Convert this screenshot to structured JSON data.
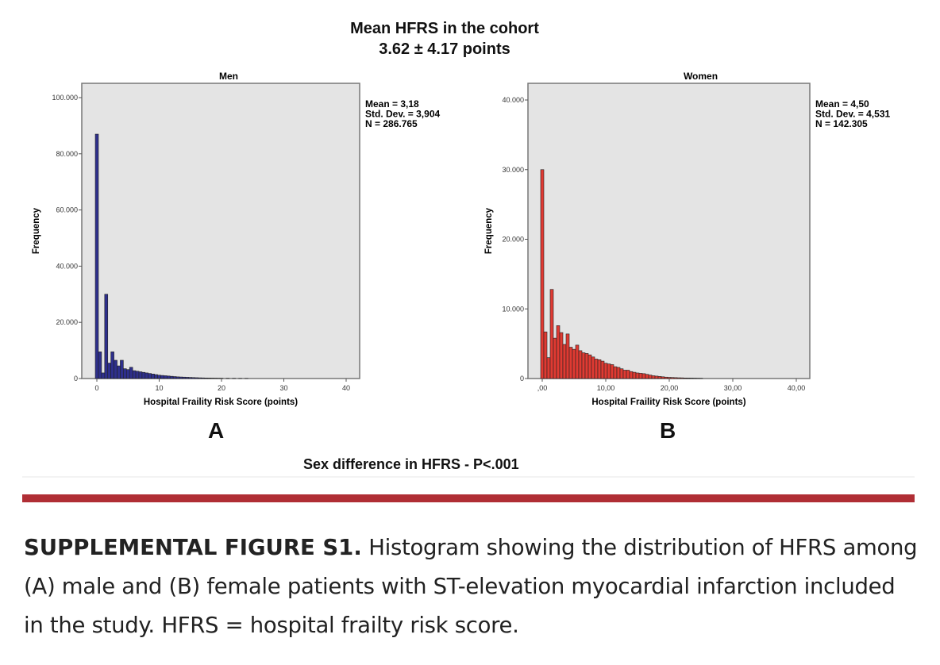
{
  "figure": {
    "title_line1": "Mean HFRS in the cohort",
    "title_line2": "3.62 ± 4.17 points",
    "footer": "Sex difference in HFRS - P<.001",
    "label_a": "A",
    "label_b": "B"
  },
  "caption": {
    "label": "SUPPLEMENTAL FIGURE S1.",
    "text": " Histogram showing the distribution of HFRS among (A) male and (B) female patients with ST-elevation myocardial infarction included in the study. HFRS = hospital frailty risk score."
  },
  "colors": {
    "men_bar": "#2e2f8c",
    "women_bar": "#e03a32",
    "plot_bg": "#e4e4e4",
    "accent_rule": "#b02e35"
  },
  "chart_data": [
    {
      "type": "bar",
      "title": "Men",
      "xlabel": "Hospital Fraility Risk Score (points)",
      "ylabel": "Frequency",
      "xlim": [
        -2,
        42
      ],
      "ylim": [
        0,
        105000
      ],
      "xticks": [
        0,
        10,
        20,
        30,
        40
      ],
      "xtick_labels": [
        "0",
        "10",
        "20",
        "30",
        "40"
      ],
      "yticks": [
        0,
        20000,
        40000,
        60000,
        80000,
        100000
      ],
      "ytick_labels": [
        "0",
        "20.000",
        "40.000",
        "60.000",
        "80.000",
        "100.000"
      ],
      "bin_width": 0.5,
      "bin_start": [
        0,
        0.5,
        1,
        1.5,
        2,
        2.5,
        3,
        3.5,
        4,
        4.5,
        5,
        5.5,
        6,
        6.5,
        7,
        7.5,
        8,
        8.5,
        9,
        9.5,
        10,
        10.5,
        11,
        11.5,
        12,
        12.5,
        13,
        13.5,
        14,
        14.5,
        15,
        15.5,
        16,
        16.5,
        17,
        17.5,
        18,
        18.5,
        19,
        19.5,
        20,
        21,
        22,
        23,
        24
      ],
      "values": [
        87000,
        9500,
        2000,
        30000,
        5500,
        9500,
        6500,
        4500,
        6500,
        3500,
        3200,
        4000,
        2800,
        2600,
        2400,
        2200,
        2000,
        1800,
        1600,
        1400,
        1200,
        1100,
        1000,
        900,
        800,
        700,
        600,
        550,
        500,
        450,
        400,
        350,
        300,
        260,
        230,
        200,
        170,
        150,
        130,
        110,
        90,
        70,
        50,
        30,
        20
      ],
      "legend_stats": [
        "Mean = 3,18",
        "Std. Dev. = 3,904",
        "N = 286.765"
      ],
      "grid": false
    },
    {
      "type": "bar",
      "title": "Women",
      "xlabel": "Hospital Fraility Risk Score (points)",
      "ylabel": "Frequency",
      "xlim": [
        -2,
        42
      ],
      "ylim": [
        0,
        42000
      ],
      "xticks": [
        0,
        10,
        20,
        30,
        40
      ],
      "xtick_labels": [
        ",00",
        "10,00",
        "20,00",
        "30,00",
        "40,00"
      ],
      "yticks": [
        0,
        10000,
        20000,
        30000,
        40000
      ],
      "ytick_labels": [
        "0",
        "10.000",
        "20.000",
        "30.000",
        "40.000"
      ],
      "bin_width": 0.5,
      "bin_start": [
        0,
        0.5,
        1,
        1.5,
        2,
        2.5,
        3,
        3.5,
        4,
        4.5,
        5,
        5.5,
        6,
        6.5,
        7,
        7.5,
        8,
        8.5,
        9,
        9.5,
        10,
        10.5,
        11,
        11.5,
        12,
        12.5,
        13,
        13.5,
        14,
        14.5,
        15,
        15.5,
        16,
        16.5,
        17,
        17.5,
        18,
        18.5,
        19,
        19.5,
        20,
        20.5,
        21,
        21.5,
        22,
        22.5,
        23,
        23.5,
        24,
        24.5,
        25
      ],
      "values": [
        30000,
        6700,
        3000,
        12800,
        5800,
        7600,
        6600,
        4900,
        6400,
        4500,
        4200,
        4800,
        4000,
        3700,
        3600,
        3400,
        3100,
        2800,
        2700,
        2500,
        2200,
        2100,
        2000,
        1700,
        1600,
        1400,
        1200,
        1200,
        1000,
        900,
        800,
        750,
        700,
        600,
        500,
        400,
        350,
        300,
        250,
        200,
        170,
        150,
        130,
        110,
        100,
        80,
        70,
        60,
        50,
        40,
        30
      ],
      "legend_stats": [
        "Mean = 4,50",
        "Std. Dev. = 4,531",
        "N = 142.305"
      ],
      "grid": false
    }
  ]
}
